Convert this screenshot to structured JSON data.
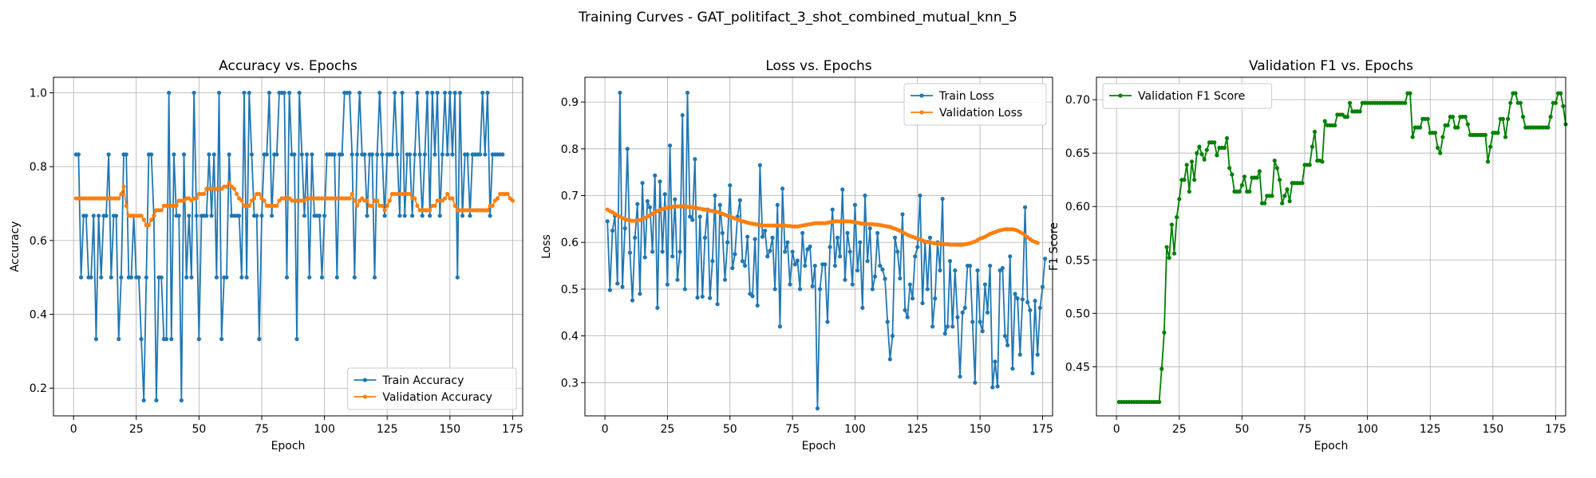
{
  "figure": {
    "suptitle": "Training Curves - GAT_politifact_3_shot_combined_mutual_knn_5"
  },
  "colors": {
    "blue": "#1f77b4",
    "orange": "#ff7f0e",
    "green": "#008000"
  },
  "chart_data": [
    {
      "type": "line",
      "title": "Accuracy vs. Epochs",
      "xlabel": "Epoch",
      "ylabel": "Accuracy",
      "xlim": [
        -8,
        179
      ],
      "ylim": [
        0.125,
        1.042
      ],
      "xticks": [
        0,
        25,
        50,
        75,
        100,
        125,
        150,
        175
      ],
      "yticks": [
        0.2,
        0.4,
        0.6,
        0.8,
        1.0
      ],
      "ytick_labels": [
        "0.2",
        "0.4",
        "0.6",
        "0.8",
        "1.0"
      ],
      "grid": true,
      "legend": "lower-right",
      "series": [
        {
          "name": "Train Accuracy",
          "color": "#1f77b4",
          "x_start": 1,
          "values": [
            0.833,
            0.833,
            0.5,
            0.667,
            0.667,
            0.5,
            0.5,
            0.667,
            0.333,
            0.667,
            0.5,
            0.667,
            0.667,
            0.833,
            0.5,
            0.667,
            0.667,
            0.333,
            0.5,
            0.833,
            0.833,
            0.5,
            0.5,
            0.667,
            0.5,
            0.5,
            0.333,
            0.167,
            0.5,
            0.833,
            0.833,
            0.667,
            0.167,
            0.5,
            0.5,
            0.333,
            0.333,
            1.0,
            0.333,
            0.833,
            0.667,
            0.667,
            0.167,
            0.833,
            0.5,
            0.667,
            0.5,
            1.0,
            0.667,
            0.333,
            0.667,
            0.667,
            0.667,
            0.833,
            0.667,
            0.833,
            0.5,
            1.0,
            0.333,
            0.5,
            0.5,
            0.833,
            0.667,
            0.667,
            0.667,
            0.667,
            0.5,
            1.0,
            0.5,
            1.0,
            0.833,
            0.667,
            0.667,
            0.333,
            0.667,
            0.833,
            0.833,
            1.0,
            0.667,
            0.833,
            0.833,
            1.0,
            1.0,
            1.0,
            0.5,
            1.0,
            0.833,
            0.833,
            0.333,
            1.0,
            0.833,
            0.667,
            0.833,
            0.5,
            0.833,
            0.667,
            0.667,
            0.667,
            0.5,
            0.667,
            0.833,
            0.833,
            0.833,
            0.833,
            0.5,
            0.833,
            0.833,
            1.0,
            1.0,
            1.0,
            0.833,
            0.5,
            0.833,
            1.0,
            0.833,
            0.833,
            0.667,
            0.833,
            0.833,
            0.5,
            0.833,
            1.0,
            0.833,
            0.667,
            0.833,
            0.833,
            0.833,
            1.0,
            0.833,
            0.667,
            1.0,
            0.667,
            0.833,
            0.833,
            0.667,
            0.833,
            1.0,
            0.833,
            0.667,
            0.833,
            1.0,
            0.667,
            1.0,
            0.833,
            1.0,
            0.667,
            0.833,
            1.0,
            0.833,
            1.0,
            0.833,
            1.0,
            0.5,
            1.0,
            0.667,
            0.833,
            0.833,
            0.667,
            0.833,
            0.833,
            0.833,
            0.833,
            1.0,
            0.833,
            1.0,
            0.667,
            0.833,
            0.833,
            0.833,
            0.833,
            0.833
          ]
        },
        {
          "name": "Validation Accuracy",
          "color": "#ff7f0e",
          "x_start": 1,
          "values": [
            0.714,
            0.714,
            0.714,
            0.714,
            0.714,
            0.714,
            0.714,
            0.714,
            0.714,
            0.714,
            0.714,
            0.714,
            0.714,
            0.714,
            0.714,
            0.714,
            0.714,
            0.714,
            0.726,
            0.746,
            0.694,
            0.667,
            0.667,
            0.667,
            0.667,
            0.667,
            0.667,
            0.656,
            0.642,
            0.642,
            0.656,
            0.667,
            0.682,
            0.682,
            0.682,
            0.694,
            0.694,
            0.694,
            0.694,
            0.694,
            0.694,
            0.708,
            0.708,
            0.708,
            0.714,
            0.714,
            0.708,
            0.714,
            0.714,
            0.726,
            0.726,
            0.726,
            0.74,
            0.74,
            0.74,
            0.74,
            0.74,
            0.74,
            0.74,
            0.746,
            0.746,
            0.756,
            0.746,
            0.74,
            0.726,
            0.714,
            0.708,
            0.694,
            0.694,
            0.694,
            0.708,
            0.714,
            0.726,
            0.726,
            0.714,
            0.708,
            0.694,
            0.694,
            0.694,
            0.694,
            0.694,
            0.708,
            0.714,
            0.714,
            0.714,
            0.714,
            0.708,
            0.708,
            0.708,
            0.708,
            0.708,
            0.708,
            0.714,
            0.714,
            0.714,
            0.714,
            0.714,
            0.714,
            0.714,
            0.714,
            0.714,
            0.714,
            0.714,
            0.714,
            0.714,
            0.714,
            0.714,
            0.714,
            0.714,
            0.714,
            0.726,
            0.708,
            0.694,
            0.708,
            0.714,
            0.708,
            0.708,
            0.694,
            0.694,
            0.708,
            0.708,
            0.694,
            0.694,
            0.682,
            0.694,
            0.708,
            0.726,
            0.726,
            0.726,
            0.726,
            0.726,
            0.726,
            0.726,
            0.726,
            0.714,
            0.714,
            0.694,
            0.682,
            0.682,
            0.682,
            0.682,
            0.682,
            0.694,
            0.694,
            0.708,
            0.708,
            0.708,
            0.714,
            0.726,
            0.714,
            0.714,
            0.694,
            0.682,
            0.682,
            0.682,
            0.682,
            0.682,
            0.682,
            0.682,
            0.682,
            0.682,
            0.682,
            0.682,
            0.682,
            0.682,
            0.694,
            0.694,
            0.708,
            0.714,
            0.726,
            0.726,
            0.726,
            0.726,
            0.714,
            0.708
          ]
        }
      ]
    },
    {
      "type": "line",
      "title": "Loss vs. Epochs",
      "xlabel": "Epoch",
      "ylabel": "Loss",
      "xlim": [
        -8,
        179
      ],
      "ylim": [
        0.229,
        0.953
      ],
      "xticks": [
        0,
        25,
        50,
        75,
        100,
        125,
        150,
        175
      ],
      "yticks": [
        0.3,
        0.4,
        0.5,
        0.6,
        0.7,
        0.8,
        0.9
      ],
      "ytick_labels": [
        "0.3",
        "0.4",
        "0.5",
        "0.6",
        "0.7",
        "0.8",
        "0.9"
      ],
      "grid": true,
      "legend": "upper-right",
      "series": [
        {
          "name": "Train Loss",
          "color": "#1f77b4",
          "x_start": 1,
          "values": [
            0.645,
            0.498,
            0.625,
            0.657,
            0.512,
            0.92,
            0.505,
            0.63,
            0.8,
            0.578,
            0.476,
            0.61,
            0.682,
            0.49,
            0.727,
            0.568,
            0.688,
            0.675,
            0.58,
            0.743,
            0.46,
            0.73,
            0.58,
            0.703,
            0.51,
            0.807,
            0.57,
            0.692,
            0.52,
            0.58,
            0.872,
            0.5,
            0.92,
            0.655,
            0.648,
            0.778,
            0.482,
            0.655,
            0.484,
            0.61,
            0.67,
            0.481,
            0.56,
            0.7,
            0.468,
            0.68,
            0.62,
            0.52,
            0.6,
            0.722,
            0.545,
            0.575,
            0.655,
            0.69,
            0.56,
            0.55,
            0.612,
            0.49,
            0.485,
            0.607,
            0.465,
            0.765,
            0.612,
            0.625,
            0.57,
            0.582,
            0.61,
            0.5,
            0.68,
            0.42,
            0.715,
            0.58,
            0.6,
            0.51,
            0.58,
            0.553,
            0.561,
            0.5,
            0.62,
            0.55,
            0.585,
            0.591,
            0.506,
            0.55,
            0.245,
            0.5,
            0.553,
            0.553,
            0.43,
            0.59,
            0.67,
            0.55,
            0.61,
            0.57,
            0.713,
            0.52,
            0.62,
            0.58,
            0.51,
            0.68,
            0.54,
            0.6,
            0.46,
            0.7,
            0.56,
            0.63,
            0.5,
            0.527,
            0.62,
            0.55,
            0.542,
            0.522,
            0.43,
            0.35,
            0.4,
            0.61,
            0.58,
            0.523,
            0.66,
            0.455,
            0.44,
            0.51,
            0.48,
            0.57,
            0.59,
            0.7,
            0.47,
            0.6,
            0.5,
            0.61,
            0.42,
            0.48,
            0.6,
            0.54,
            0.693,
            0.405,
            0.42,
            0.56,
            0.42,
            0.54,
            0.44,
            0.313,
            0.45,
            0.46,
            0.55,
            0.55,
            0.43,
            0.3,
            0.54,
            0.43,
            0.41,
            0.51,
            0.45,
            0.55,
            0.29,
            0.345,
            0.292,
            0.54,
            0.545,
            0.4,
            0.38,
            0.57,
            0.33,
            0.49,
            0.48,
            0.36,
            0.478,
            0.675,
            0.472,
            0.455,
            0.32,
            0.475,
            0.36,
            0.46,
            0.505,
            0.565
          ]
        },
        {
          "name": "Validation Loss",
          "color": "#ff7f0e",
          "x_start": 1,
          "values": [
            0.67,
            0.667,
            0.664,
            0.661,
            0.658,
            0.655,
            0.652,
            0.65,
            0.648,
            0.647,
            0.646,
            0.646,
            0.647,
            0.648,
            0.65,
            0.652,
            0.655,
            0.658,
            0.661,
            0.664,
            0.667,
            0.669,
            0.671,
            0.673,
            0.674,
            0.675,
            0.676,
            0.677,
            0.677,
            0.677,
            0.677,
            0.677,
            0.676,
            0.676,
            0.675,
            0.674,
            0.673,
            0.672,
            0.671,
            0.67,
            0.669,
            0.668,
            0.667,
            0.666,
            0.665,
            0.663,
            0.661,
            0.659,
            0.657,
            0.655,
            0.653,
            0.651,
            0.649,
            0.647,
            0.645,
            0.644,
            0.642,
            0.641,
            0.64,
            0.639,
            0.638,
            0.637,
            0.636,
            0.636,
            0.636,
            0.636,
            0.636,
            0.636,
            0.636,
            0.636,
            0.636,
            0.636,
            0.635,
            0.635,
            0.634,
            0.634,
            0.634,
            0.635,
            0.636,
            0.637,
            0.638,
            0.639,
            0.64,
            0.641,
            0.641,
            0.641,
            0.641,
            0.641,
            0.642,
            0.643,
            0.644,
            0.645,
            0.645,
            0.645,
            0.645,
            0.645,
            0.645,
            0.645,
            0.644,
            0.643,
            0.642,
            0.641,
            0.64,
            0.639,
            0.639,
            0.639,
            0.639,
            0.638,
            0.638,
            0.637,
            0.636,
            0.635,
            0.634,
            0.633,
            0.631,
            0.629,
            0.627,
            0.625,
            0.622,
            0.619,
            0.616,
            0.614,
            0.612,
            0.61,
            0.608,
            0.606,
            0.604,
            0.602,
            0.601,
            0.6,
            0.599,
            0.598,
            0.597,
            0.597,
            0.596,
            0.596,
            0.596,
            0.595,
            0.595,
            0.595,
            0.595,
            0.595,
            0.595,
            0.596,
            0.597,
            0.598,
            0.6,
            0.602,
            0.605,
            0.608,
            0.61,
            0.612,
            0.615,
            0.618,
            0.62,
            0.622,
            0.624,
            0.626,
            0.627,
            0.628,
            0.628,
            0.628,
            0.628,
            0.627,
            0.625,
            0.622,
            0.619,
            0.615,
            0.611,
            0.607,
            0.603,
            0.601,
            0.599
          ]
        }
      ]
    },
    {
      "type": "line",
      "title": "Validation F1 vs. Epochs",
      "xlabel": "Epoch",
      "ylabel": "F1 Score",
      "xlim": [
        -8,
        179
      ],
      "ylim": [
        0.404,
        0.721
      ],
      "xticks": [
        0,
        25,
        50,
        75,
        100,
        125,
        150,
        175
      ],
      "yticks": [
        0.45,
        0.5,
        0.55,
        0.6,
        0.65,
        0.7
      ],
      "ytick_labels": [
        "0.45",
        "0.50",
        "0.55",
        "0.60",
        "0.65",
        "0.70"
      ],
      "grid": true,
      "legend": "upper-left",
      "series": [
        {
          "name": "Validation F1 Score",
          "color": "#008000",
          "x_start": 1,
          "values": [
            0.417,
            0.417,
            0.417,
            0.417,
            0.417,
            0.417,
            0.417,
            0.417,
            0.417,
            0.417,
            0.417,
            0.417,
            0.417,
            0.417,
            0.417,
            0.417,
            0.417,
            0.448,
            0.482,
            0.562,
            0.552,
            0.583,
            0.556,
            0.59,
            0.607,
            0.625,
            0.625,
            0.639,
            0.614,
            0.642,
            0.625,
            0.65,
            0.656,
            0.649,
            0.644,
            0.653,
            0.66,
            0.66,
            0.66,
            0.648,
            0.655,
            0.655,
            0.655,
            0.664,
            0.636,
            0.63,
            0.614,
            0.614,
            0.614,
            0.62,
            0.628,
            0.614,
            0.614,
            0.627,
            0.627,
            0.627,
            0.633,
            0.603,
            0.603,
            0.61,
            0.61,
            0.61,
            0.643,
            0.636,
            0.625,
            0.603,
            0.61,
            0.616,
            0.605,
            0.622,
            0.622,
            0.622,
            0.622,
            0.622,
            0.639,
            0.639,
            0.639,
            0.656,
            0.67,
            0.643,
            0.643,
            0.642,
            0.68,
            0.676,
            0.676,
            0.676,
            0.676,
            0.686,
            0.686,
            0.686,
            0.684,
            0.684,
            0.697,
            0.689,
            0.689,
            0.689,
            0.689,
            0.697,
            0.697,
            0.697,
            0.697,
            0.697,
            0.697,
            0.697,
            0.697,
            0.697,
            0.697,
            0.697,
            0.697,
            0.697,
            0.697,
            0.697,
            0.697,
            0.697,
            0.697,
            0.706,
            0.706,
            0.665,
            0.674,
            0.674,
            0.674,
            0.682,
            0.682,
            0.682,
            0.669,
            0.669,
            0.669,
            0.655,
            0.65,
            0.665,
            0.676,
            0.676,
            0.684,
            0.684,
            0.674,
            0.674,
            0.684,
            0.684,
            0.684,
            0.677,
            0.667,
            0.667,
            0.667,
            0.667,
            0.667,
            0.667,
            0.667,
            0.642,
            0.656,
            0.669,
            0.669,
            0.669,
            0.682,
            0.682,
            0.665,
            0.682,
            0.697,
            0.706,
            0.706,
            0.697,
            0.697,
            0.684,
            0.674,
            0.674,
            0.674,
            0.674,
            0.674,
            0.674,
            0.674,
            0.674,
            0.674,
            0.674,
            0.684,
            0.697,
            0.697,
            0.706,
            0.706,
            0.694,
            0.677
          ]
        }
      ]
    }
  ]
}
